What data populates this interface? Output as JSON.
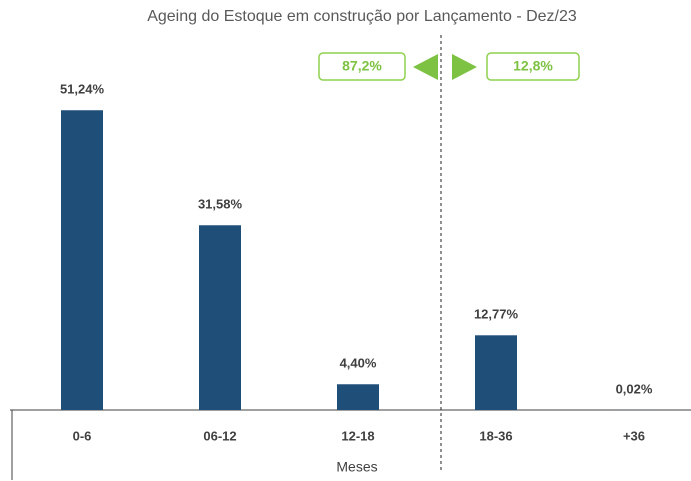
{
  "chart_data": {
    "type": "bar",
    "title": "Ageing do Estoque em construção por Lançamento - Dez/23",
    "x_label": "Meses",
    "categories": [
      "0-6",
      "06-12",
      "12-18",
      "18-36",
      "+36"
    ],
    "values": [
      51.24,
      31.58,
      4.4,
      12.77,
      0.02
    ],
    "value_labels": [
      "51,24%",
      "31,58%",
      "4,40%",
      "12,77%",
      "0,02%"
    ],
    "color": "#1f4e79",
    "ylim": [
      0,
      60
    ],
    "annotations": [
      "87,2%",
      "12,8%"
    ]
  }
}
